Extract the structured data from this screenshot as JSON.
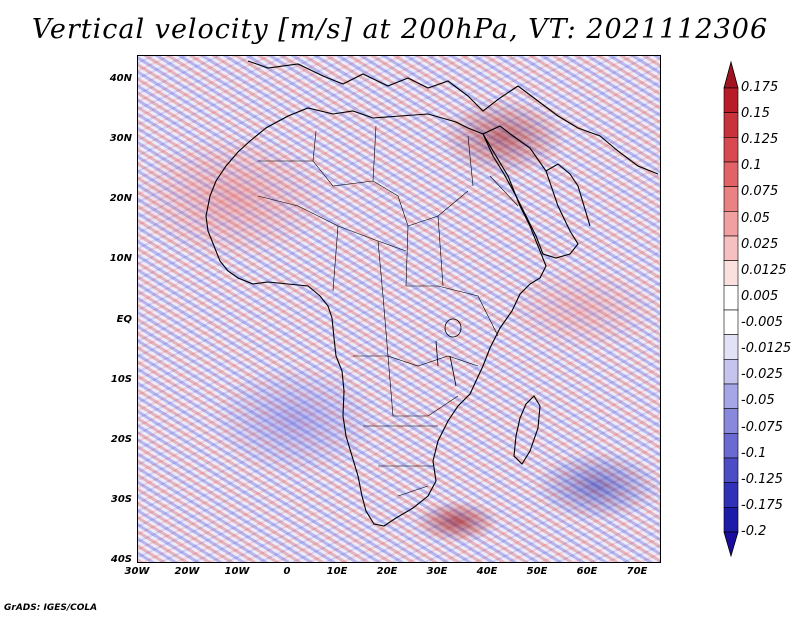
{
  "title": "Vertical velocity [m/s] at 200hPa, VT: 2021112306",
  "credit": "GrADS: IGES/COLA",
  "map": {
    "region": "Africa",
    "lat_labels": [
      "40N",
      "30N",
      "20N",
      "10N",
      "EQ",
      "10S",
      "20S",
      "30S",
      "40S"
    ],
    "lon_labels": [
      "30W",
      "20W",
      "10W",
      "0",
      "10E",
      "20E",
      "30E",
      "40E",
      "50E",
      "60E",
      "70E"
    ]
  },
  "colorbar": {
    "levels": [
      "0.175",
      "0.15",
      "0.125",
      "0.1",
      "0.075",
      "0.05",
      "0.025",
      "0.0125",
      "0.005",
      "-0.005",
      "-0.0125",
      "-0.025",
      "-0.05",
      "-0.075",
      "-0.1",
      "-0.125",
      "-0.175",
      "-0.2"
    ],
    "colors": [
      "#b81c26",
      "#c8323a",
      "#d84a4f",
      "#e26366",
      "#ea8182",
      "#f0a0a0",
      "#f5c0bf",
      "#fae0df",
      "#ffffff",
      "#ffffff",
      "#e2e2f6",
      "#c4c4ee",
      "#a6a6e6",
      "#8888dc",
      "#6a6ad2",
      "#4c4cc6",
      "#3030b8",
      "#1c1ca8"
    ],
    "top_arrow_color": "#a01420",
    "bottom_arrow_color": "#1a0c9c"
  }
}
